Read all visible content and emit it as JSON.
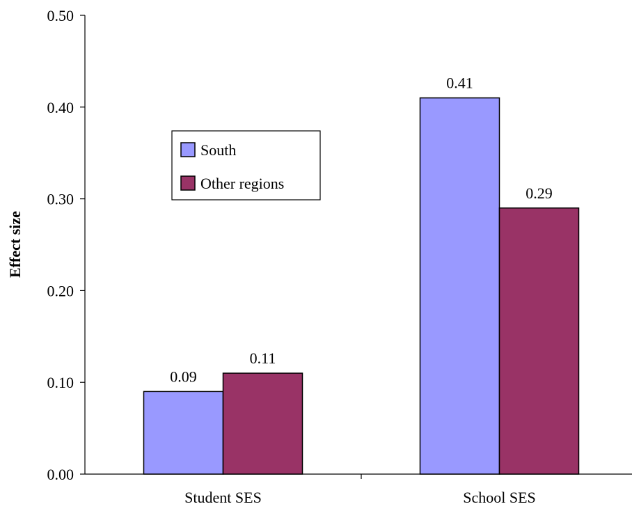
{
  "chart_data": {
    "type": "bar",
    "title": "",
    "xlabel": "",
    "ylabel": "Effect size",
    "categories": [
      "Student SES",
      "School SES"
    ],
    "series": [
      {
        "name": "South",
        "values": [
          0.09,
          0.41
        ],
        "labels": [
          "0.09",
          "0.41"
        ],
        "color": "#9999FF"
      },
      {
        "name": "Other regions",
        "values": [
          0.11,
          0.29
        ],
        "labels": [
          "0.11",
          "0.29"
        ],
        "color": "#993366"
      }
    ],
    "ylim": [
      0,
      0.5
    ],
    "yticks": [
      0.0,
      0.1,
      0.2,
      0.3,
      0.4,
      0.5
    ],
    "ytick_labels": [
      "0.00",
      "0.10",
      "0.20",
      "0.30",
      "0.40",
      "0.50"
    ],
    "grid": false,
    "legend": "upper-left inside plot"
  }
}
